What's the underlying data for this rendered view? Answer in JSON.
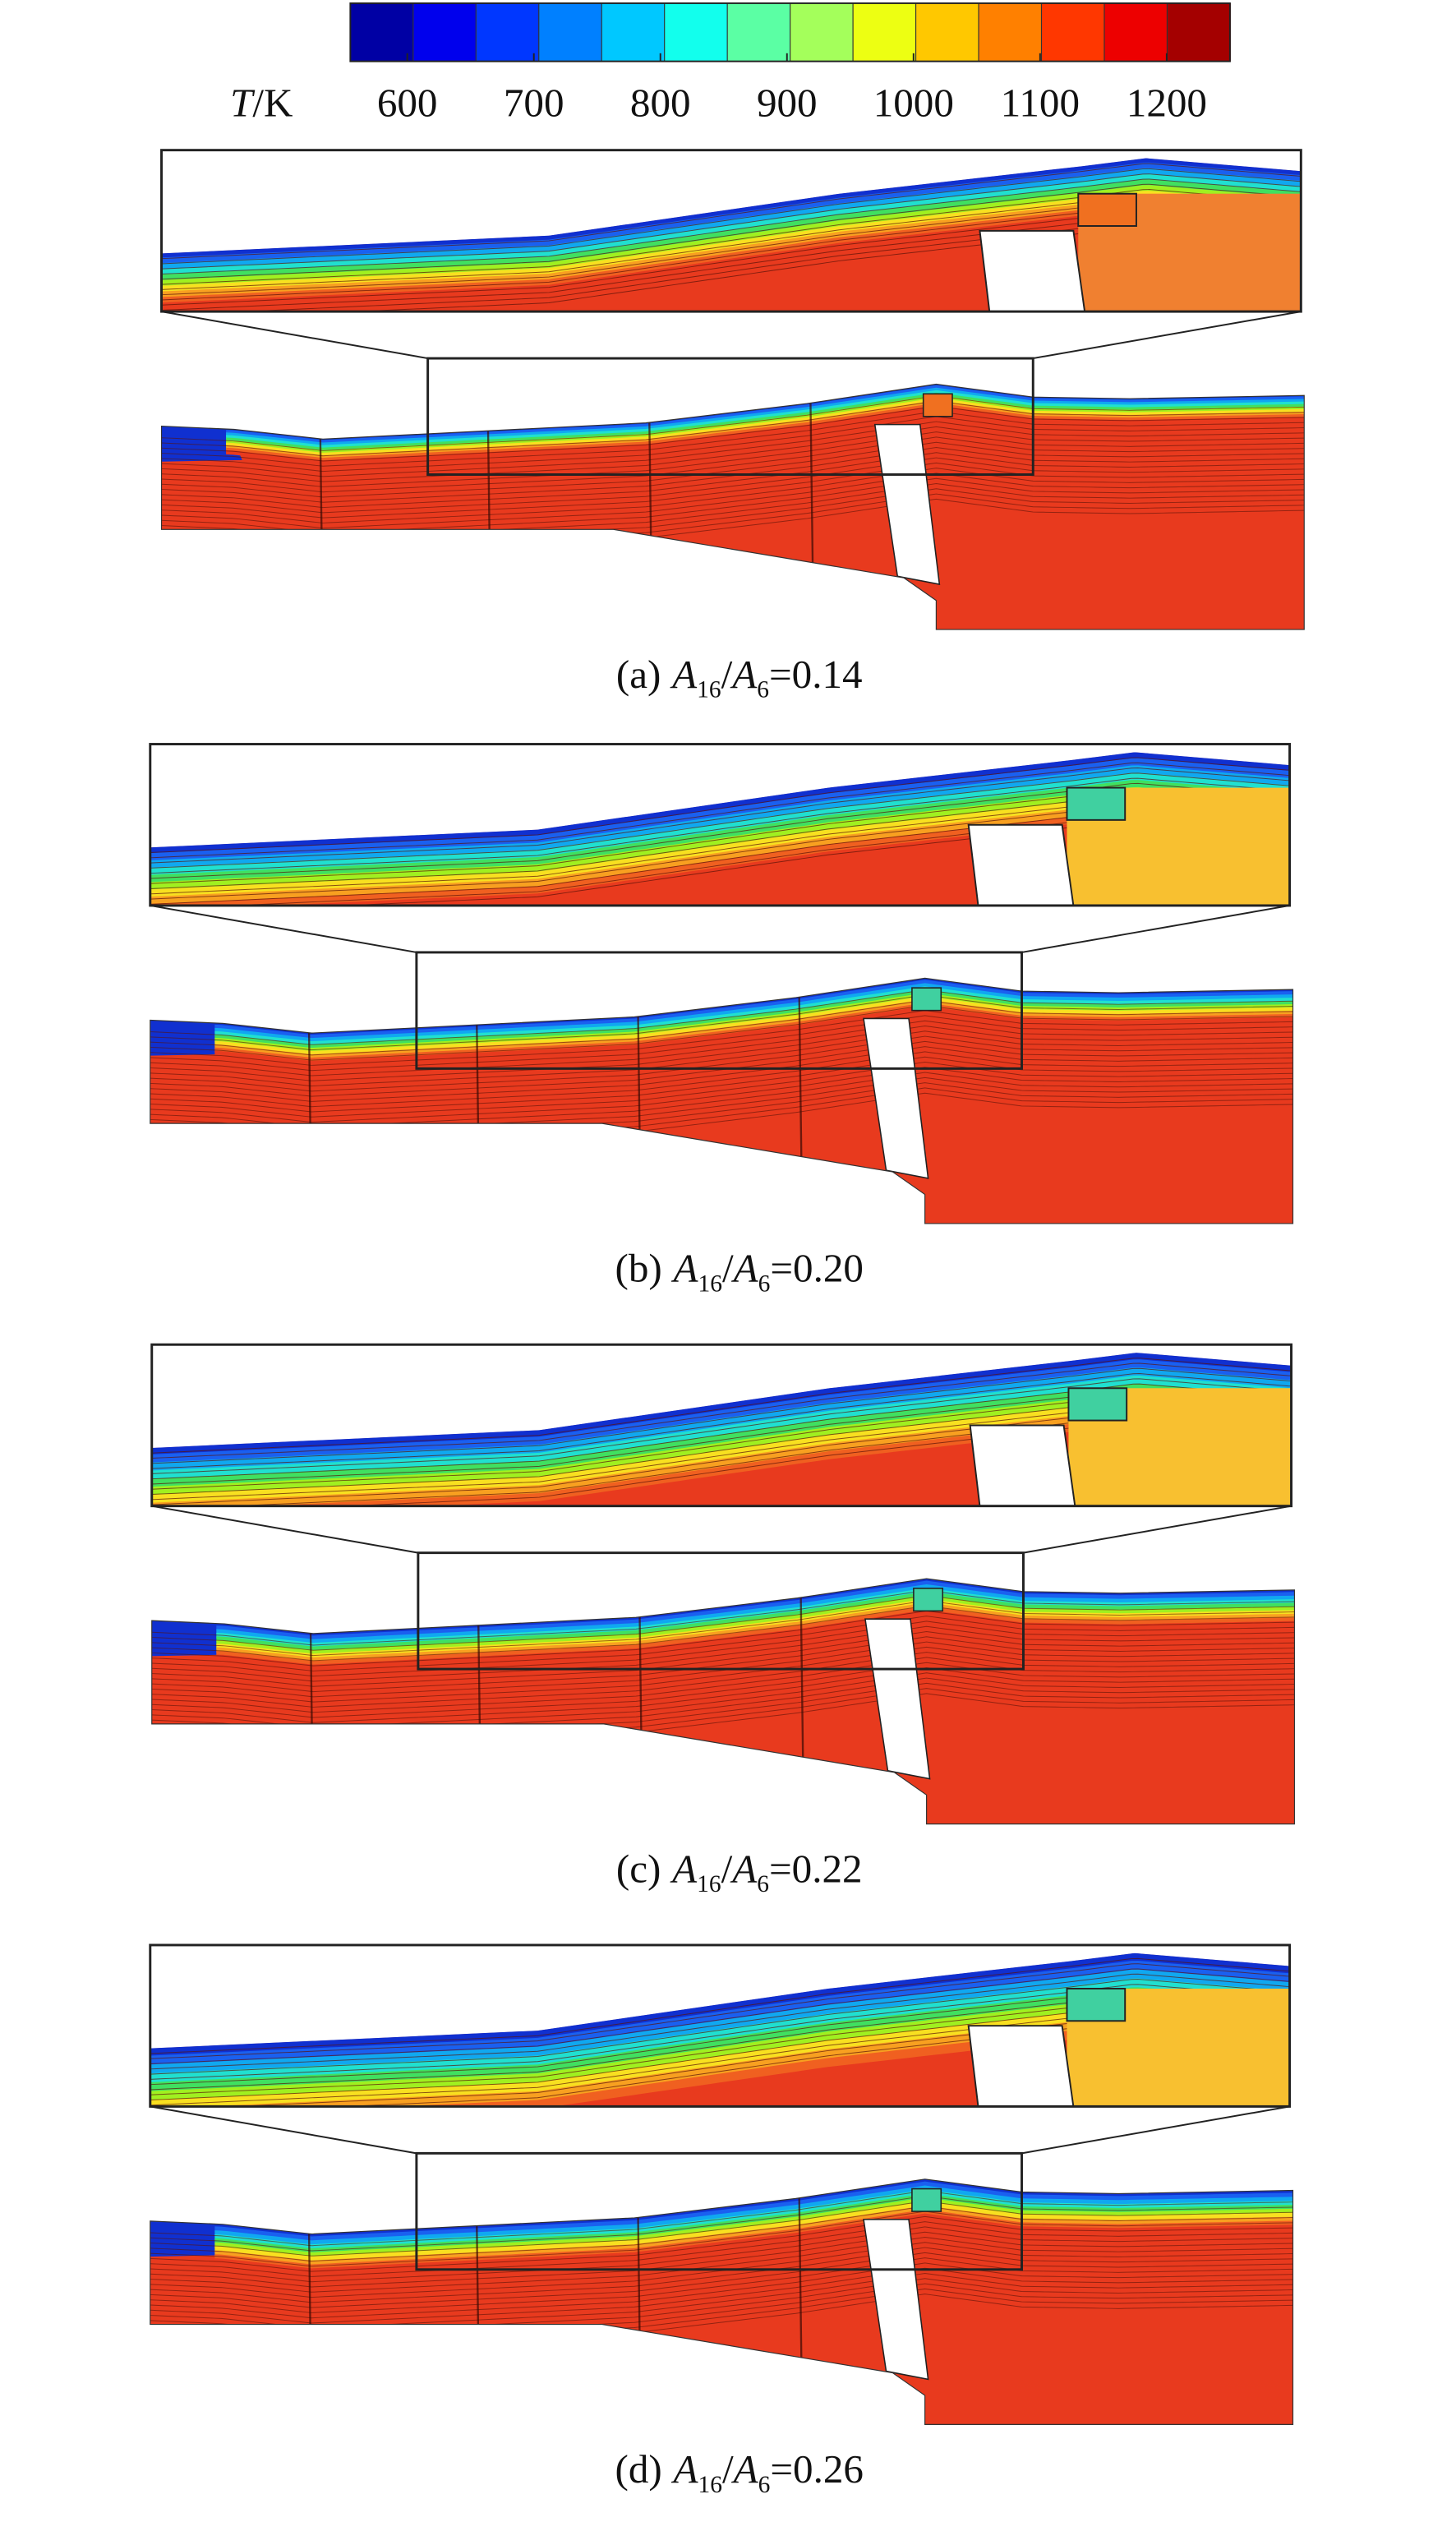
{
  "colorbar": {
    "label_var": "T",
    "label_unit": "/K",
    "range": [
      555,
      1250
    ],
    "ticks": [
      600,
      700,
      800,
      900,
      1000,
      1100,
      1200
    ]
  },
  "caption_symbol": {
    "var": "A",
    "sub_num": "16",
    "slash": "/",
    "sub_den": "6",
    "eq": "="
  },
  "panels": [
    {
      "label": "(a)",
      "ratio": "0.14"
    },
    {
      "label": "(b)",
      "ratio": "0.20"
    },
    {
      "label": "(c)",
      "ratio": "0.22"
    },
    {
      "label": "(d)",
      "ratio": "0.26"
    }
  ]
}
